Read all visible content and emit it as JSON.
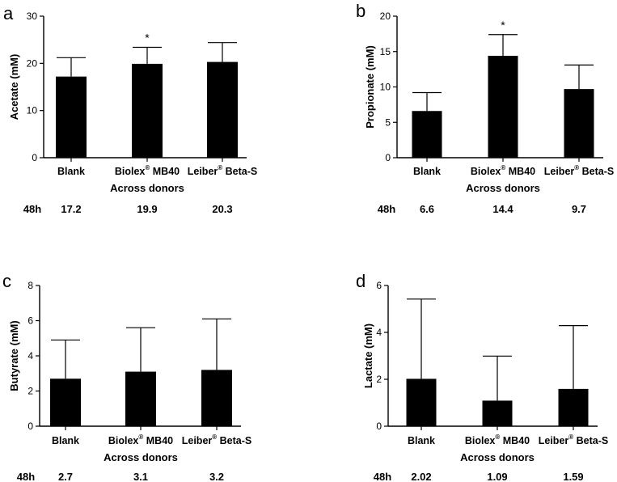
{
  "chart_data": [
    {
      "panel": "a",
      "type": "bar",
      "categories": [
        {
          "name": "Blank",
          "sup": "",
          "suffix": ""
        },
        {
          "name": "Biolex",
          "sup": "®",
          "suffix": " MB40"
        },
        {
          "name": "Leiber",
          "sup": "®",
          "suffix": " Beta-S"
        }
      ],
      "values": [
        17.2,
        19.9,
        20.3
      ],
      "errors": [
        4.0,
        3.5,
        4.1
      ],
      "significance": [
        "",
        "*",
        ""
      ],
      "xlabel": "Across donors",
      "ylabel": "Acetate (mM)",
      "ylim": [
        0,
        30
      ],
      "yticks": [
        0,
        10,
        20,
        30
      ],
      "row_label": "48h",
      "row_values": [
        "17.2",
        "19.9",
        "20.3"
      ]
    },
    {
      "panel": "b",
      "type": "bar",
      "categories": [
        {
          "name": "Blank",
          "sup": "",
          "suffix": ""
        },
        {
          "name": "Biolex",
          "sup": "®",
          "suffix": " MB40"
        },
        {
          "name": "Leiber",
          "sup": "®",
          "suffix": " Beta-S"
        }
      ],
      "values": [
        6.6,
        14.4,
        9.7
      ],
      "errors": [
        2.6,
        3.0,
        3.4
      ],
      "significance": [
        "",
        "*",
        ""
      ],
      "xlabel": "Across donors",
      "ylabel": "Propionate (mM)",
      "ylim": [
        0,
        20
      ],
      "yticks": [
        0,
        5,
        10,
        15,
        20
      ],
      "row_label": "48h",
      "row_values": [
        "6.6",
        "14.4",
        "9.7"
      ]
    },
    {
      "panel": "c",
      "type": "bar",
      "categories": [
        {
          "name": "Blank",
          "sup": "",
          "suffix": ""
        },
        {
          "name": "Biolex",
          "sup": "®",
          "suffix": " MB40"
        },
        {
          "name": "Leiber",
          "sup": "®",
          "suffix": " Beta-S"
        }
      ],
      "values": [
        2.7,
        3.1,
        3.2
      ],
      "errors": [
        2.2,
        2.5,
        2.9
      ],
      "significance": [
        "",
        "",
        ""
      ],
      "xlabel": "Across donors",
      "ylabel": "Butyrate (mM)",
      "ylim": [
        0,
        8
      ],
      "yticks": [
        0,
        2,
        4,
        6,
        8
      ],
      "row_label": "48h",
      "row_values": [
        "2.7",
        "3.1",
        "3.2"
      ]
    },
    {
      "panel": "d",
      "type": "bar",
      "categories": [
        {
          "name": "Blank",
          "sup": "",
          "suffix": ""
        },
        {
          "name": "Biolex",
          "sup": "®",
          "suffix": " MB40"
        },
        {
          "name": "Leiber",
          "sup": "®",
          "suffix": " Beta-S"
        }
      ],
      "values": [
        2.02,
        1.09,
        1.59
      ],
      "errors": [
        3.4,
        1.9,
        2.7
      ],
      "significance": [
        "",
        "",
        ""
      ],
      "xlabel": "Across donors",
      "ylabel": "Lactate (mM)",
      "ylim": [
        0,
        6
      ],
      "yticks": [
        0,
        2,
        4,
        6
      ],
      "row_label": "48h",
      "row_values": [
        "2.02",
        "1.09",
        "1.59"
      ]
    }
  ]
}
